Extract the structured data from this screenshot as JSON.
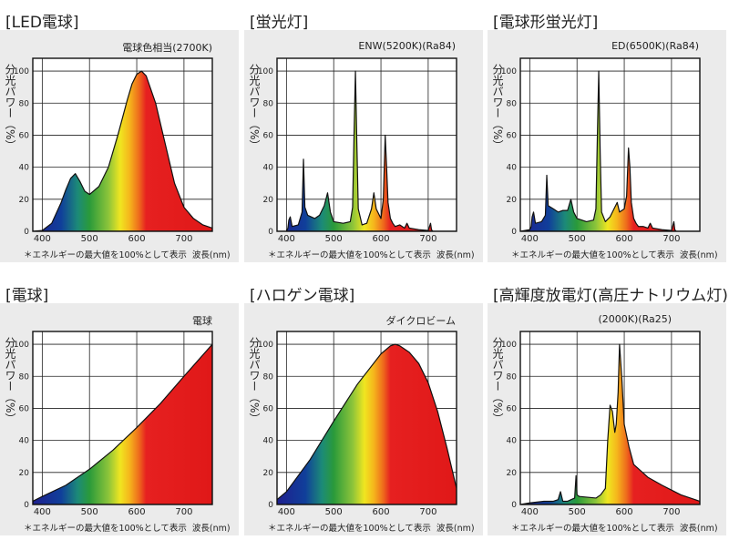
{
  "ylabel": "分光パワー（%）",
  "footnote": "＊エネルギーの最大値を100%として表示",
  "xlabel": "波長(nm)",
  "chart_data": [
    {
      "type": "area",
      "title": "[LED電球]",
      "subtitle": "電球色相当(2700K)",
      "xlim": [
        380,
        760
      ],
      "ylim": [
        0,
        108
      ],
      "xticks": [
        400,
        500,
        600,
        700
      ],
      "yticks": [
        0,
        20,
        40,
        60,
        80,
        100
      ],
      "grid": true,
      "x": [
        380,
        400,
        420,
        440,
        450,
        460,
        470,
        480,
        490,
        500,
        520,
        540,
        560,
        580,
        590,
        600,
        610,
        620,
        640,
        660,
        680,
        700,
        720,
        740,
        760
      ],
      "y": [
        0,
        0.5,
        5,
        18,
        26,
        33,
        36,
        31,
        25,
        23,
        28,
        40,
        60,
        82,
        92,
        98,
        100,
        97,
        80,
        55,
        30,
        15,
        8,
        4,
        2
      ]
    },
    {
      "type": "area",
      "title": "[蛍光灯]",
      "subtitle": "ENW(5200K)(Ra84)",
      "xlim": [
        380,
        760
      ],
      "ylim": [
        0,
        108
      ],
      "xticks": [
        400,
        500,
        600,
        700
      ],
      "yticks": [
        0,
        20,
        40,
        60,
        80,
        100
      ],
      "grid": true,
      "x": [
        380,
        400,
        403,
        405,
        408,
        412,
        425,
        433,
        436,
        439,
        445,
        460,
        470,
        480,
        487,
        490,
        493,
        500,
        520,
        535,
        540,
        543,
        546,
        549,
        552,
        560,
        570,
        580,
        585,
        590,
        600,
        605,
        609,
        612,
        615,
        620,
        625,
        630,
        640,
        650,
        655,
        660,
        680,
        700,
        705,
        707,
        710,
        720,
        760
      ],
      "y": [
        0,
        0,
        2,
        7,
        9,
        3,
        4,
        12,
        45,
        15,
        10,
        8,
        10,
        16,
        24,
        18,
        12,
        6,
        5,
        6,
        15,
        60,
        100,
        55,
        14,
        4,
        5,
        14,
        24,
        14,
        8,
        20,
        60,
        40,
        18,
        8,
        5,
        3,
        4,
        2,
        5,
        2,
        1,
        0.5,
        5,
        1,
        0,
        0,
        0
      ]
    },
    {
      "type": "area",
      "title": "[電球形蛍光灯]",
      "subtitle": "ED(6500K)(Ra84)",
      "xlim": [
        380,
        760
      ],
      "ylim": [
        0,
        108
      ],
      "xticks": [
        400,
        500,
        600,
        700
      ],
      "yticks": [
        0,
        20,
        40,
        60,
        80,
        100
      ],
      "grid": true,
      "x": [
        380,
        400,
        403,
        405,
        408,
        412,
        425,
        433,
        436,
        439,
        450,
        460,
        470,
        480,
        487,
        490,
        493,
        500,
        520,
        535,
        540,
        543,
        546,
        549,
        552,
        560,
        570,
        580,
        585,
        590,
        600,
        605,
        609,
        612,
        615,
        620,
        625,
        630,
        640,
        650,
        655,
        660,
        680,
        700,
        705,
        707,
        710,
        720,
        760
      ],
      "y": [
        0,
        1,
        3,
        9,
        12,
        5,
        6,
        10,
        35,
        16,
        14,
        12,
        13,
        13,
        20,
        16,
        12,
        8,
        6,
        7,
        14,
        58,
        100,
        50,
        12,
        6,
        9,
        15,
        18,
        12,
        14,
        22,
        52,
        40,
        18,
        8,
        5,
        3,
        3,
        2,
        5,
        2,
        1,
        0.5,
        6,
        1,
        0,
        0,
        0
      ]
    },
    {
      "type": "area",
      "title": "[電球]",
      "subtitle": "電球",
      "xlim": [
        380,
        760
      ],
      "ylim": [
        0,
        108
      ],
      "xticks": [
        400,
        500,
        600,
        700
      ],
      "yticks": [
        0,
        20,
        40,
        60,
        80,
        100
      ],
      "grid": true,
      "x": [
        380,
        400,
        450,
        500,
        550,
        600,
        650,
        700,
        760
      ],
      "y": [
        2,
        5,
        12,
        22,
        34,
        48,
        63,
        80,
        100
      ]
    },
    {
      "type": "area",
      "title": "[ハロゲン電球]",
      "subtitle": "ダイクロビーム",
      "xlim": [
        380,
        760
      ],
      "ylim": [
        0,
        108
      ],
      "xticks": [
        400,
        500,
        600,
        700
      ],
      "yticks": [
        0,
        20,
        40,
        60,
        80,
        100
      ],
      "grid": true,
      "x": [
        380,
        400,
        450,
        500,
        550,
        600,
        620,
        630,
        640,
        660,
        680,
        700,
        720,
        740,
        760
      ],
      "y": [
        3,
        8,
        28,
        52,
        75,
        94,
        99,
        100,
        99,
        95,
        88,
        76,
        58,
        35,
        10
      ]
    },
    {
      "type": "area",
      "title": "[高輝度放電灯(高圧ナトリウム灯)]",
      "subtitle": "(2000K)(Ra25)",
      "xlim": [
        380,
        760
      ],
      "ylim": [
        0,
        108
      ],
      "xticks": [
        400,
        500,
        600,
        700
      ],
      "yticks": [
        0,
        20,
        40,
        60,
        80,
        100
      ],
      "grid": true,
      "x": [
        380,
        400,
        430,
        450,
        460,
        465,
        470,
        480,
        495,
        498,
        500,
        505,
        540,
        550,
        560,
        565,
        570,
        575,
        580,
        583,
        587,
        590,
        595,
        600,
        610,
        620,
        650,
        680,
        700,
        720,
        740,
        760
      ],
      "y": [
        0,
        1,
        2,
        2,
        3,
        8,
        2,
        2,
        4,
        18,
        6,
        5,
        4,
        6,
        10,
        40,
        62,
        58,
        45,
        50,
        70,
        100,
        78,
        50,
        36,
        25,
        17,
        12,
        9,
        6,
        4,
        2
      ]
    }
  ]
}
